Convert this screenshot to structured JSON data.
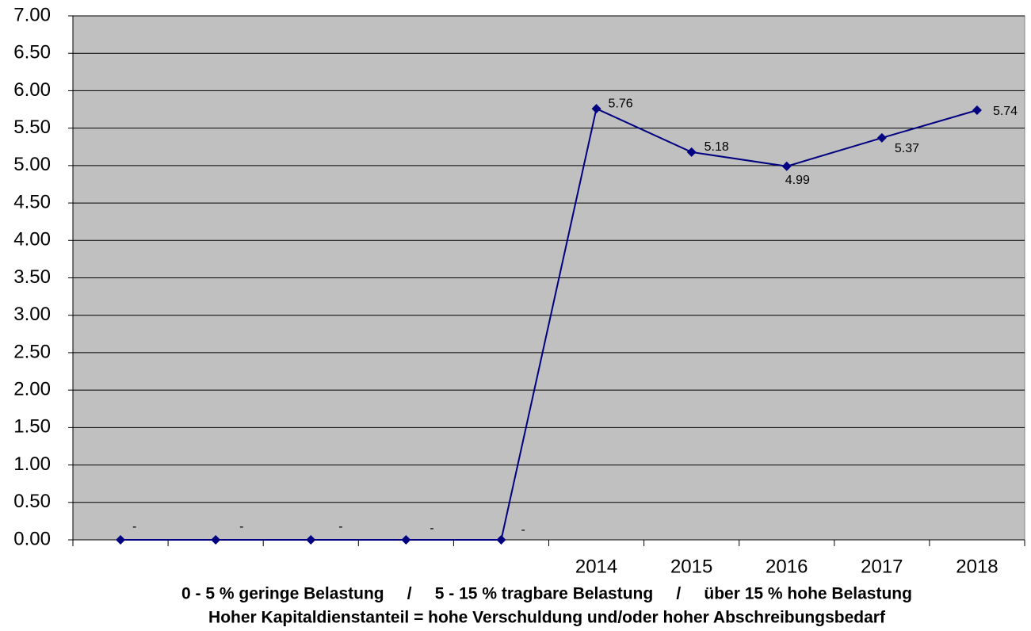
{
  "chart_data": {
    "type": "line",
    "categories": [
      null,
      null,
      null,
      null,
      null,
      "2014",
      "2015",
      "2016",
      "2017",
      "2018"
    ],
    "series": [
      {
        "color": "#000080",
        "values": [
          0,
          0,
          0,
          0,
          0,
          5.76,
          5.18,
          4.99,
          5.37,
          5.74
        ],
        "value_labels": [
          "-",
          "-",
          "-",
          "-",
          "-",
          "5.76",
          "5.18",
          "4.99",
          "5.37",
          "5.74"
        ]
      }
    ],
    "ylim": [
      0,
      7
    ],
    "yticks": [
      {
        "value": 0,
        "label": "0.00"
      },
      {
        "value": 0.5,
        "label": "0.50"
      },
      {
        "value": 1,
        "label": "1.00"
      },
      {
        "value": 1.5,
        "label": "1.50"
      },
      {
        "value": 2,
        "label": "2.00"
      },
      {
        "value": 2.5,
        "label": "2.50"
      },
      {
        "value": 3,
        "label": "3.00"
      },
      {
        "value": 3.5,
        "label": "3.50"
      },
      {
        "value": 4,
        "label": "4.00"
      },
      {
        "value": 4.5,
        "label": "4.50"
      },
      {
        "value": 5,
        "label": "5.00"
      },
      {
        "value": 5.5,
        "label": "5.50"
      },
      {
        "value": 6,
        "label": "6.00"
      },
      {
        "value": 6.5,
        "label": "6.50"
      },
      {
        "value": 7,
        "label": "7.00"
      }
    ],
    "grid": true,
    "plot_background": "#c0c0c0",
    "x_label": "0 - 5 % geringe Belastung     /     5 - 15 % tragbare Belastung     /     über 15 % hohe Belastung",
    "annotation": "Hoher Kapitaldienstanteil = hohe Verschuldung und/oder hoher Abschreibungsbedarf"
  }
}
